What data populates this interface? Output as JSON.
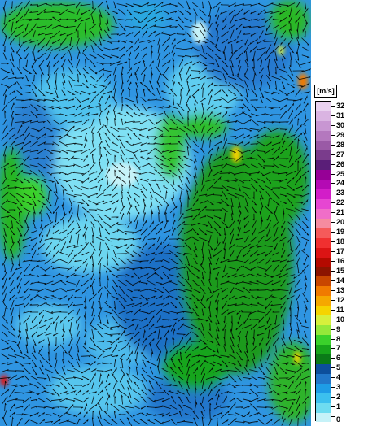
{
  "legend": {
    "unit": "[m/s]",
    "levels": [
      {
        "value": "0",
        "color": "#c6f2f8"
      },
      {
        "value": "1",
        "color": "#6edcf0"
      },
      {
        "value": "2",
        "color": "#3cc0ee"
      },
      {
        "value": "3",
        "color": "#1e9ce6"
      },
      {
        "value": "4",
        "color": "#2176c9"
      },
      {
        "value": "5",
        "color": "#0c4e9c"
      },
      {
        "value": "6",
        "color": "#0a7a18"
      },
      {
        "value": "7",
        "color": "#17a51b"
      },
      {
        "value": "8",
        "color": "#3ad12b"
      },
      {
        "value": "9",
        "color": "#94e83a"
      },
      {
        "value": "10",
        "color": "#d6f03c"
      },
      {
        "value": "11",
        "color": "#f5d400"
      },
      {
        "value": "12",
        "color": "#f5a800"
      },
      {
        "value": "13",
        "color": "#f07a00"
      },
      {
        "value": "14",
        "color": "#c84600"
      },
      {
        "value": "15",
        "color": "#8c1400"
      },
      {
        "value": "16",
        "color": "#b40a00"
      },
      {
        "value": "17",
        "color": "#dc1414"
      },
      {
        "value": "18",
        "color": "#f03030"
      },
      {
        "value": "19",
        "color": "#f55a5a"
      },
      {
        "value": "20",
        "color": "#f58ca0"
      },
      {
        "value": "21",
        "color": "#f06ec8"
      },
      {
        "value": "22",
        "color": "#e646d2"
      },
      {
        "value": "23",
        "color": "#d21ec8"
      },
      {
        "value": "24",
        "color": "#b40ab4"
      },
      {
        "value": "25",
        "color": "#960096"
      },
      {
        "value": "26",
        "color": "#5a1e78"
      },
      {
        "value": "27",
        "color": "#7a3c8c"
      },
      {
        "value": "28",
        "color": "#9a5aa6"
      },
      {
        "value": "29",
        "color": "#b478be"
      },
      {
        "value": "30",
        "color": "#c896d2"
      },
      {
        "value": "31",
        "color": "#dab4e2"
      },
      {
        "value": "32",
        "color": "#ead2f0"
      }
    ]
  }
}
